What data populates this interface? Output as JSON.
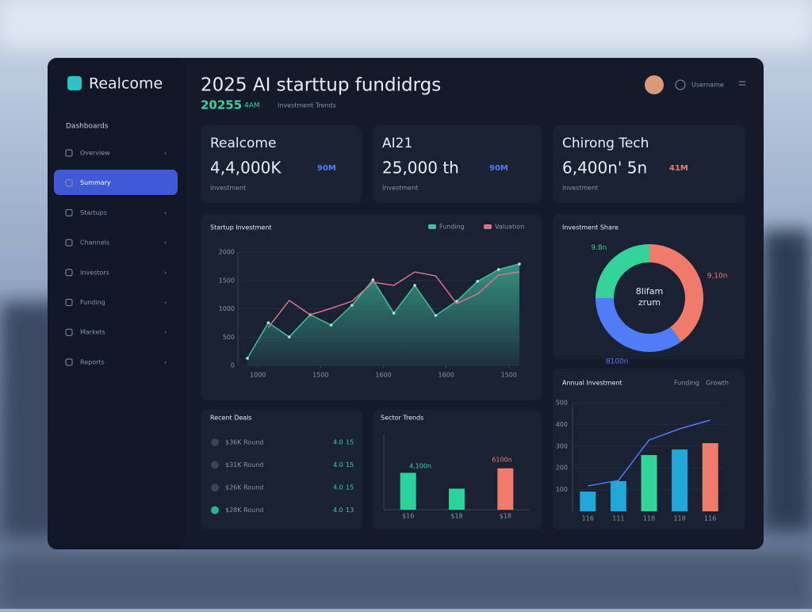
{
  "sidebar": {
    "brand": "Realcome",
    "section": "Dashboards",
    "items": [
      "Overview",
      "Summary",
      "Startups",
      "Channels",
      "Investors",
      "Funding",
      "Markets",
      "Reports"
    ]
  },
  "header": {
    "title": "2025 AI starttup fundidrgs",
    "subtitle": "20255",
    "tag": "4AM",
    "note": "Investment Trends",
    "user": "Username"
  },
  "cards": [
    {
      "name": "Realcome",
      "value": "4,4,000K",
      "badge": "90M",
      "note": "Investment",
      "badge_color": "#4f7cf7"
    },
    {
      "name": "AI21",
      "value": "25,000 th",
      "badge": "90M",
      "note": "Investment",
      "badge_color": "#4f7cf7"
    },
    {
      "name": "Chirong Tech",
      "value": "6,400n' 5n",
      "badge": "41M",
      "note": "Investment",
      "badge_color": "#f07b6b"
    }
  ],
  "line_chart": {
    "type": "line",
    "title": "Startup Investment",
    "x": [
      0,
      1,
      2,
      3,
      4,
      5,
      6,
      7,
      8,
      9,
      10,
      11,
      12,
      13
    ],
    "xlim": [
      0,
      13
    ],
    "xticks": [
      {
        "value": 0.5,
        "label": "1000"
      },
      {
        "value": 3.5,
        "label": "1500"
      },
      {
        "value": 6.5,
        "label": "1600"
      },
      {
        "value": 9.5,
        "label": "1600"
      },
      {
        "value": 12.5,
        "label": "1500"
      }
    ],
    "ylim": [
      0,
      2000
    ],
    "yticks": [
      0,
      500,
      1000,
      1500,
      2000
    ],
    "series": [
      {
        "name": "Funding",
        "color": "#3fc1a0",
        "values": [
          126,
          755,
          503,
          895,
          713,
          1063,
          1510,
          923,
          1413,
          881,
          1133,
          1483,
          1692,
          1790
        ]
      },
      {
        "name": "Valuation",
        "color": "#d9738a",
        "values": [
          null,
          671,
          1147,
          895,
          1007,
          1133,
          1469,
          1413,
          1650,
          1580,
          1091,
          1259,
          1594,
          1650
        ]
      }
    ]
  },
  "donut": {
    "type": "pie",
    "title": "Investment Share",
    "center": [
      "8lifam",
      "zrum"
    ],
    "categories": [
      "9,10n",
      "8100n",
      "9.8n"
    ],
    "values": [
      40,
      35,
      25
    ],
    "colors": [
      "#f07b6b",
      "#4f7cf7",
      "#34d399"
    ]
  },
  "deals": {
    "title": "Recent Deals",
    "rows": [
      {
        "label": "$36K Round",
        "value": "4.0",
        "change": "15"
      },
      {
        "label": "$31K Round",
        "value": "4.0",
        "change": "15"
      },
      {
        "label": "$26K Round",
        "value": "4.0",
        "change": "15"
      },
      {
        "label": "$28K Round",
        "value": "4.0",
        "change": "13"
      }
    ]
  },
  "sector_chart": {
    "type": "bar",
    "title": "Sector Trends",
    "categories": [
      "$16",
      "$18",
      "$18"
    ],
    "values": [
      49,
      28,
      55
    ],
    "colors": [
      "#2bd39a",
      "#2bd39a",
      "#f07b6b"
    ],
    "ylim": [
      0,
      100
    ],
    "annotations": [
      "4,100n",
      "6100n"
    ]
  },
  "growth_chart": {
    "type": "bar",
    "title": "Annual Investment",
    "categories": [
      "116",
      "111",
      "118",
      "118",
      "116"
    ],
    "ylim": [
      0,
      500
    ],
    "yticks": [
      100,
      200,
      300,
      400,
      500
    ],
    "series": [
      {
        "name": "Funding",
        "type": "bar",
        "colors": [
          "#22a6d8",
          "#22a6d8",
          "#34d399",
          "#22a6d8",
          "#f07b6b"
        ],
        "values": [
          91,
          139,
          259,
          285,
          314
        ]
      },
      {
        "name": "Growth",
        "type": "line",
        "color": "#4f7cf7",
        "values": [
          117,
          142,
          328,
          380,
          420
        ]
      }
    ]
  }
}
